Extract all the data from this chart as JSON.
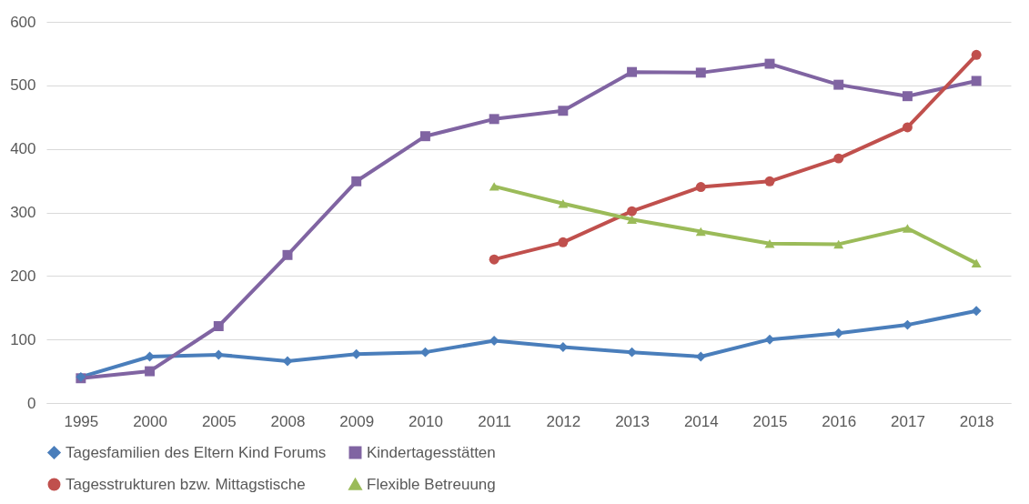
{
  "chart_data": {
    "type": "line",
    "categories": [
      "1995",
      "2000",
      "2005",
      "2008",
      "2009",
      "2010",
      "2011",
      "2012",
      "2013",
      "2014",
      "2015",
      "2016",
      "2017",
      "2018"
    ],
    "series": [
      {
        "name": "Tagesfamilien des Eltern Kind Forums",
        "color": "#4a7ebb",
        "marker": "diamond",
        "values": [
          41,
          73,
          76,
          66,
          77,
          80,
          98,
          88,
          80,
          73,
          100,
          110,
          123,
          145
        ]
      },
      {
        "name": "Kindertagesstätten",
        "color": "#8064a2",
        "marker": "square",
        "values": [
          39,
          50,
          121,
          233,
          349,
          420,
          447,
          460,
          521,
          520,
          534,
          501,
          483,
          507
        ]
      },
      {
        "name": "Tagesstrukturen bzw. Mittagstische",
        "color": "#c0504d",
        "marker": "circle",
        "values": [
          null,
          null,
          null,
          null,
          null,
          null,
          226,
          253,
          302,
          340,
          349,
          385,
          434,
          548
        ]
      },
      {
        "name": "Flexible Betreuung",
        "color": "#9bbb59",
        "marker": "triangle",
        "values": [
          null,
          null,
          null,
          null,
          null,
          null,
          341,
          314,
          289,
          270,
          251,
          250,
          275,
          220
        ]
      }
    ],
    "ylim": [
      0,
      600
    ],
    "yticks": [
      0,
      100,
      200,
      300,
      400,
      500,
      600
    ],
    "grid": "y",
    "legend": "bottom",
    "line_style": "solid"
  }
}
